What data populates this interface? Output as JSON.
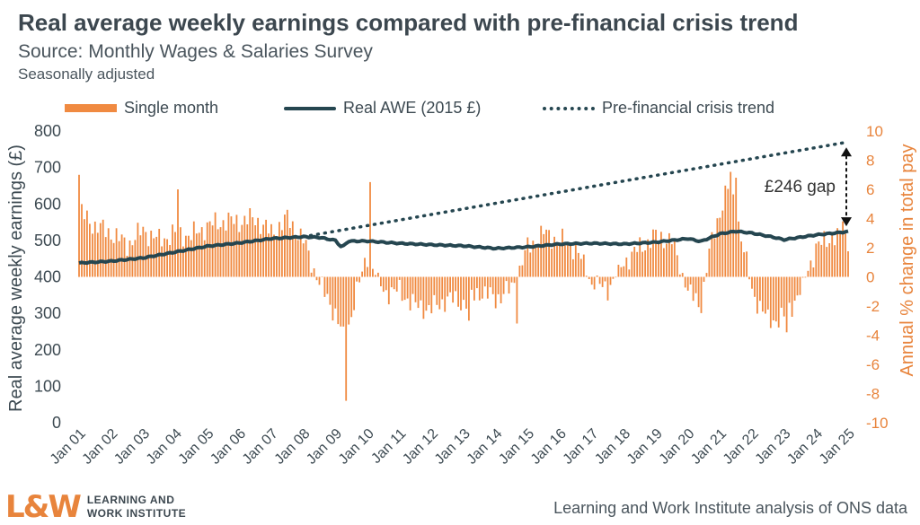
{
  "title": "Real average weekly earnings compared with pre-financial crisis trend",
  "subtitle": "Source: Monthly Wages & Salaries Survey",
  "note": "Seasonally adjusted",
  "legend": {
    "bars": "Single month",
    "line": "Real AWE (2015 £)",
    "trend": "Pre-financial crisis trend"
  },
  "annotation": "£246 gap",
  "footer_source": "Learning and Work Institute analysis of ONS data",
  "logo": {
    "mark": "L&W",
    "line1": "LEARNING AND",
    "line2": "WORK INSTITUTE"
  },
  "colors": {
    "bars": "#f08a41",
    "line": "#254650",
    "text": "#3d4a52",
    "right_axis": "#e8843c"
  },
  "chart_data": {
    "type": "bar+line",
    "x_labels": [
      "Jan 01",
      "Jan 02",
      "Jan 03",
      "Jan 04",
      "Jan 05",
      "Jan 06",
      "Jan 07",
      "Jan 08",
      "Jan 09",
      "Jan 10",
      "Jan 11",
      "Jan 12",
      "Jan 13",
      "Jan 14",
      "Jan 15",
      "Jan 16",
      "Jan 17",
      "Jan 18",
      "Jan 19",
      "Jan 20",
      "Jan 21",
      "Jan 22",
      "Jan 23",
      "Jan 24",
      "Jan 25"
    ],
    "y_left": {
      "label": "Real average weekly earnings (£)",
      "ticks": [
        0,
        100,
        200,
        300,
        400,
        500,
        600,
        700,
        800
      ],
      "ylim": [
        0,
        800
      ]
    },
    "y_right": {
      "label": "Annual % change in total pay",
      "ticks": [
        -10,
        -8,
        -6,
        -4,
        -2,
        0,
        2,
        4,
        6,
        8,
        10
      ],
      "ylim": [
        -10,
        10
      ]
    },
    "series_line": {
      "name": "Real AWE (2015 £)",
      "points": [
        [
          2001,
          438
        ],
        [
          2002,
          443
        ],
        [
          2003,
          452
        ],
        [
          2004,
          468
        ],
        [
          2005,
          484
        ],
        [
          2006,
          493
        ],
        [
          2007,
          505
        ],
        [
          2008,
          510
        ],
        [
          2008.5,
          508
        ],
        [
          2009,
          500
        ],
        [
          2009.2,
          480
        ],
        [
          2009.4,
          498
        ],
        [
          2010,
          498
        ],
        [
          2011,
          492
        ],
        [
          2012,
          488
        ],
        [
          2013,
          485
        ],
        [
          2014,
          478
        ],
        [
          2015,
          482
        ],
        [
          2016,
          490
        ],
        [
          2017,
          492
        ],
        [
          2018,
          490
        ],
        [
          2019,
          495
        ],
        [
          2020,
          505
        ],
        [
          2020.4,
          497
        ],
        [
          2021,
          518
        ],
        [
          2021.5,
          525
        ],
        [
          2022,
          520
        ],
        [
          2022.6,
          510
        ],
        [
          2023,
          502
        ],
        [
          2024,
          515
        ],
        [
          2025,
          524
        ]
      ]
    },
    "series_trend": {
      "name": "Pre-financial crisis trend",
      "points": [
        [
          2008,
          510
        ],
        [
          2025,
          770
        ]
      ]
    },
    "series_bars": {
      "name": "Single month",
      "anchors": [
        [
          2001,
          4.5
        ],
        [
          2001.5,
          3.5
        ],
        [
          2002,
          3.0
        ],
        [
          2002.5,
          2.2
        ],
        [
          2003,
          3.2
        ],
        [
          2003.5,
          2.5
        ],
        [
          2004,
          3.0
        ],
        [
          2004.5,
          2.8
        ],
        [
          2005,
          3.5
        ],
        [
          2005.5,
          3.8
        ],
        [
          2006,
          3.8
        ],
        [
          2006.5,
          4.0
        ],
        [
          2007,
          3.0
        ],
        [
          2007.5,
          4.0
        ],
        [
          2008,
          2.5
        ],
        [
          2008.5,
          -0.5
        ],
        [
          2009,
          -2.5
        ],
        [
          2009.3,
          -4.5
        ],
        [
          2009.6,
          -1.5
        ],
        [
          2010,
          1.5
        ],
        [
          2010.5,
          -1.0
        ],
        [
          2011,
          -1.0
        ],
        [
          2011.5,
          -2.0
        ],
        [
          2012,
          -2.2
        ],
        [
          2012.5,
          -1.5
        ],
        [
          2013,
          -1.8
        ],
        [
          2013.5,
          -1.0
        ],
        [
          2014,
          -1.5
        ],
        [
          2014.5,
          -0.8
        ],
        [
          2015,
          2.0
        ],
        [
          2015.5,
          3.0
        ],
        [
          2016,
          2.5
        ],
        [
          2016.5,
          2.0
        ],
        [
          2017,
          -0.5
        ],
        [
          2017.5,
          -0.8
        ],
        [
          2018,
          1.0
        ],
        [
          2018.5,
          2.0
        ],
        [
          2019,
          2.8
        ],
        [
          2019.5,
          2.5
        ],
        [
          2020,
          -1.0
        ],
        [
          2020.4,
          -2.0
        ],
        [
          2020.7,
          2.0
        ],
        [
          2021,
          4.5
        ],
        [
          2021.3,
          6.5
        ],
        [
          2021.6,
          3.5
        ],
        [
          2022,
          -1.0
        ],
        [
          2022.5,
          -3.0
        ],
        [
          2023,
          -2.8
        ],
        [
          2023.5,
          -1.0
        ],
        [
          2024,
          2.0
        ],
        [
          2024.5,
          2.8
        ],
        [
          2025,
          2.5
        ]
      ],
      "spikes": [
        [
          2001,
          7.0
        ],
        [
          2004.05,
          6.0
        ],
        [
          2009.3,
          -8.5
        ],
        [
          2010.1,
          6.5
        ],
        [
          2013.2,
          -3.0
        ],
        [
          2014.7,
          -3.2
        ],
        [
          2021.35,
          7.2
        ],
        [
          2021.5,
          6.8
        ],
        [
          2023.1,
          -3.8
        ],
        [
          2024.8,
          3.8
        ]
      ]
    },
    "gap_annotation": {
      "x": 2025,
      "from": 524,
      "to": 770,
      "label": "£246 gap"
    }
  }
}
